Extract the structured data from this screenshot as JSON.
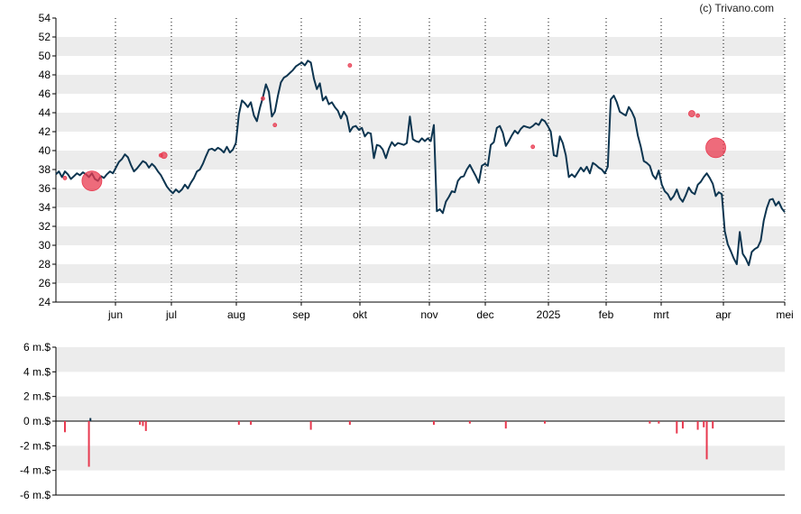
{
  "credit": "(c) Trivano.com",
  "colors": {
    "band": "#ececec",
    "line": "#0d3550",
    "marker": "#e8394f",
    "axis": "#000000"
  },
  "chart_data": [
    {
      "type": "line",
      "title": "",
      "x_tick_labels": [
        "jun",
        "jul",
        "aug",
        "sep",
        "okt",
        "nov",
        "dec",
        "2025",
        "feb",
        "mrt",
        "apr",
        "mei"
      ],
      "ylim": [
        24,
        54
      ],
      "y_ticks": [
        24,
        26,
        28,
        30,
        32,
        34,
        36,
        38,
        40,
        42,
        44,
        46,
        48,
        50,
        52,
        54
      ],
      "grid": "alternating horizontal bands, dotted vertical lines at month ticks",
      "series": [
        {
          "values": [
            37.5,
            37.8,
            37.2,
            37.8,
            37.5,
            37.0,
            37.3,
            37.6,
            37.4,
            37.7,
            37.5,
            37.2,
            37.6,
            37.0,
            36.8,
            37.3,
            37.1,
            37.5,
            37.8,
            37.6,
            38.2,
            38.8,
            39.1,
            39.6,
            39.3,
            38.5,
            37.8,
            38.1,
            38.5,
            38.9,
            38.7,
            38.2,
            38.6,
            38.3,
            37.8,
            37.4,
            36.8,
            36.2,
            35.8,
            35.5,
            35.9,
            35.6,
            35.9,
            36.4,
            36.0,
            36.6,
            37.1,
            37.8,
            38.0,
            38.6,
            39.4,
            40.1,
            40.2,
            40.0,
            40.3,
            40.1,
            39.8,
            40.4,
            39.8,
            40.1,
            40.8,
            43.8,
            45.3,
            45.0,
            44.6,
            45.1,
            43.7,
            43.1,
            44.5,
            45.6,
            47.0,
            46.2,
            43.6,
            44.1,
            45.8,
            47.2,
            47.7,
            47.9,
            48.2,
            48.5,
            48.9,
            49.1,
            49.3,
            49.0,
            49.5,
            49.3,
            47.6,
            46.5,
            47.1,
            45.3,
            45.7,
            44.9,
            45.1,
            44.6,
            44.2,
            43.4,
            44.1,
            43.6,
            42.0,
            42.5,
            42.6,
            42.2,
            42.4,
            41.5,
            41.9,
            41.8,
            39.2,
            40.6,
            40.5,
            40.1,
            39.2,
            40.2,
            40.9,
            40.5,
            40.8,
            40.7,
            40.6,
            40.8,
            43.6,
            41.2,
            41.0,
            40.9,
            41.3,
            41.0,
            41.3,
            41.0,
            42.7,
            33.6,
            33.8,
            33.4,
            34.6,
            35.1,
            35.7,
            35.6,
            36.8,
            37.2,
            37.3,
            38.0,
            38.5,
            37.9,
            37.3,
            36.6,
            38.4,
            38.6,
            38.4,
            40.6,
            40.9,
            42.4,
            42.6,
            41.9,
            40.5,
            41.0,
            41.6,
            42.1,
            41.8,
            42.3,
            42.6,
            42.5,
            42.4,
            42.6,
            42.9,
            42.7,
            43.3,
            43.1,
            42.6,
            42.0,
            39.5,
            39.4,
            41.5,
            40.8,
            39.5,
            37.2,
            37.5,
            37.2,
            37.7,
            38.2,
            37.8,
            38.3,
            37.6,
            38.7,
            38.5,
            38.2,
            38.0,
            37.6,
            38.3,
            45.4,
            45.8,
            45.1,
            44.1,
            43.9,
            43.7,
            44.6,
            44.1,
            43.4,
            41.6,
            40.4,
            38.9,
            38.7,
            38.4,
            37.4,
            37.0,
            37.9,
            36.4,
            35.7,
            35.4,
            34.8,
            35.2,
            35.9,
            35.0,
            34.6,
            35.3,
            36.1,
            35.6,
            35.4,
            36.4,
            36.7,
            37.2,
            37.6,
            37.1,
            36.5,
            35.2,
            35.6,
            35.4,
            31.5,
            30.1,
            29.4,
            28.6,
            28.0,
            31.4,
            29.1,
            28.6,
            27.9,
            29.3,
            29.6,
            29.8,
            30.5,
            32.6,
            33.9,
            34.8,
            34.9,
            34.2,
            34.6,
            33.9,
            33.5
          ]
        }
      ],
      "markers": [
        {
          "x_index": 3,
          "y": 37.1,
          "size": "small"
        },
        {
          "x_index": 12,
          "y": 36.8,
          "size": "large"
        },
        {
          "x_index": 35,
          "y": 39.5,
          "size": "small"
        },
        {
          "x_index": 36,
          "y": 39.5,
          "size": "medium"
        },
        {
          "x_index": 69,
          "y": 45.5,
          "size": "small"
        },
        {
          "x_index": 73,
          "y": 42.7,
          "size": "small"
        },
        {
          "x_index": 98,
          "y": 49.0,
          "size": "small"
        },
        {
          "x_index": 159,
          "y": 40.4,
          "size": "small"
        },
        {
          "x_index": 212,
          "y": 43.9,
          "size": "medium"
        },
        {
          "x_index": 214,
          "y": 43.7,
          "size": "small"
        },
        {
          "x_index": 220,
          "y": 40.3,
          "size": "large"
        }
      ]
    },
    {
      "type": "bar",
      "title": "",
      "y_tick_labels": [
        "-6 m.$",
        "-4 m.$",
        "-2 m.$",
        "0 m.$",
        "2 m.$",
        "4 m.$",
        "6 m.$"
      ],
      "ylim": [
        -6,
        6
      ],
      "bars": [
        {
          "x_index": 3,
          "value": -0.9
        },
        {
          "x_index": 11,
          "value": -3.7
        },
        {
          "x_index": 11.5,
          "value": 0.25
        },
        {
          "x_index": 28,
          "value": -0.3
        },
        {
          "x_index": 29,
          "value": -0.4
        },
        {
          "x_index": 30,
          "value": -0.8
        },
        {
          "x_index": 61,
          "value": -0.3
        },
        {
          "x_index": 65,
          "value": -0.3
        },
        {
          "x_index": 85,
          "value": -0.7
        },
        {
          "x_index": 98,
          "value": -0.3
        },
        {
          "x_index": 126,
          "value": -0.3
        },
        {
          "x_index": 138,
          "value": -0.2
        },
        {
          "x_index": 150,
          "value": -0.6
        },
        {
          "x_index": 163,
          "value": -0.2
        },
        {
          "x_index": 198,
          "value": -0.2
        },
        {
          "x_index": 201,
          "value": -0.2
        },
        {
          "x_index": 207,
          "value": -1.0
        },
        {
          "x_index": 209,
          "value": -0.6
        },
        {
          "x_index": 214,
          "value": -0.7
        },
        {
          "x_index": 216,
          "value": -0.5
        },
        {
          "x_index": 217,
          "value": -3.1
        },
        {
          "x_index": 219,
          "value": -0.6
        },
        {
          "x_index": 260,
          "value": -0.1
        }
      ]
    }
  ]
}
